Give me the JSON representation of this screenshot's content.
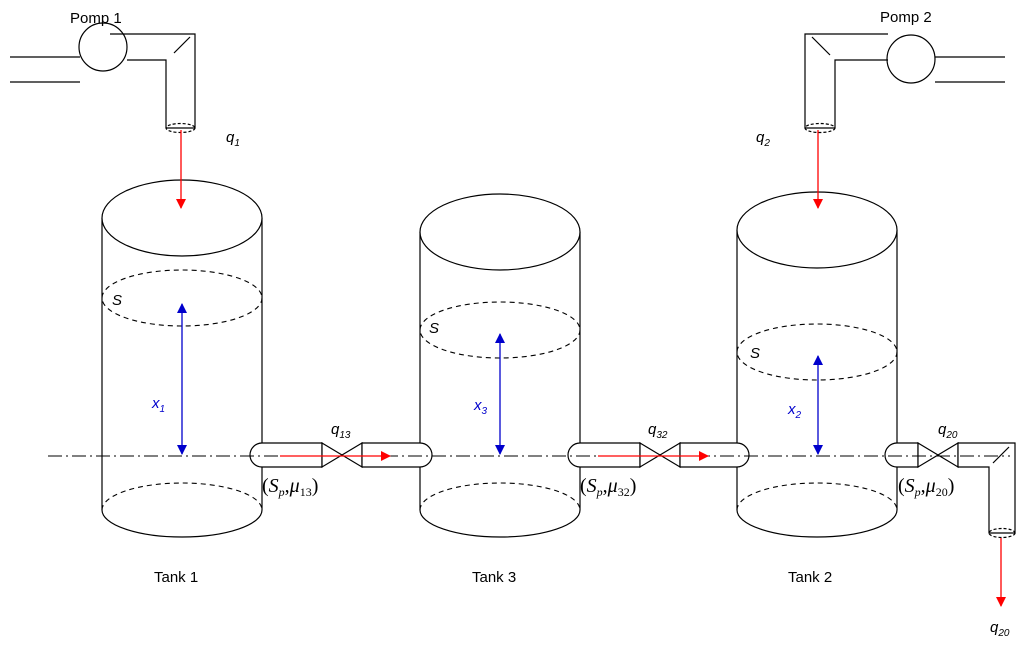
{
  "colors": {
    "flow": "#ff0000",
    "level": "#0000cc",
    "line": "#000000"
  },
  "pumps": [
    {
      "label": "Pomp 1"
    },
    {
      "label": "Pomp 2"
    }
  ],
  "tanks": [
    {
      "label": "Tank 1",
      "area": "S",
      "level": {
        "sym": "x",
        "sub": "1"
      }
    },
    {
      "label": "Tank 3",
      "area": "S",
      "level": {
        "sym": "x",
        "sub": "3"
      }
    },
    {
      "label": "Tank 2",
      "area": "S",
      "level": {
        "sym": "x",
        "sub": "2"
      }
    }
  ],
  "flows": {
    "q1": {
      "sym": "q",
      "sub": "1"
    },
    "q2": {
      "sym": "q",
      "sub": "2"
    },
    "q13": {
      "sym": "q",
      "sub": "13"
    },
    "q32": {
      "sym": "q",
      "sub": "32"
    },
    "q20": {
      "sym": "q",
      "sub": "20"
    },
    "q20_out": {
      "sym": "q",
      "sub": "20"
    }
  },
  "valves": [
    {
      "open": "(",
      "s": "S",
      "s_sub": "p",
      "sep": ",",
      "mu": "μ",
      "mu_sub": "13",
      "close": ")"
    },
    {
      "open": "(",
      "s": "S",
      "s_sub": "p",
      "sep": ",",
      "mu": "μ",
      "mu_sub": "32",
      "close": ")"
    },
    {
      "open": "(",
      "s": "S",
      "s_sub": "p",
      "sep": ",",
      "mu": "μ",
      "mu_sub": "20",
      "close": ")"
    }
  ]
}
